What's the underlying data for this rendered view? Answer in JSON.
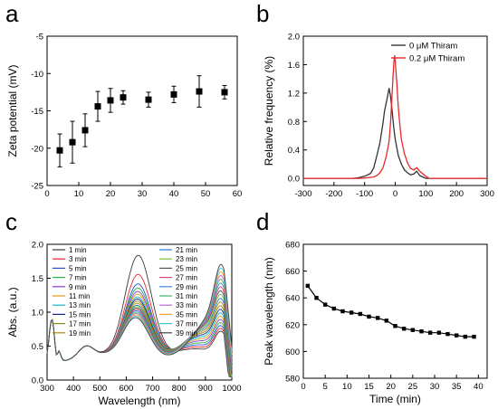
{
  "chart_data": [
    {
      "panel": "a",
      "type": "scatter",
      "ylabel": "Zeta potential (mV)",
      "xlabel": "",
      "xlim": [
        0,
        60
      ],
      "ylim": [
        -25,
        -5
      ],
      "xticks": [
        "0",
        "10",
        "20",
        "30",
        "40",
        "50",
        "60"
      ],
      "yticks": [
        "-25",
        "-20",
        "-15",
        "-10",
        "-5"
      ],
      "x": [
        4,
        8,
        12,
        16,
        20,
        24,
        32,
        40,
        48,
        56
      ],
      "y": [
        -20.3,
        -19.2,
        -17.6,
        -14.4,
        -13.6,
        -13.2,
        -13.5,
        -12.8,
        -12.4,
        -12.5
      ],
      "err": [
        2.2,
        2.8,
        2.2,
        2.0,
        1.6,
        0.9,
        1.0,
        1.1,
        2.1,
        0.9
      ],
      "color": "#000000"
    },
    {
      "panel": "b",
      "type": "line",
      "ylabel": "Relative frequency (%)",
      "xlabel": "",
      "xlim": [
        -300,
        300
      ],
      "ylim": [
        -0.1,
        2.0
      ],
      "xticks": [
        "-300",
        "-200",
        "-100",
        "0",
        "100",
        "200",
        "300"
      ],
      "yticks": [
        "0.0",
        "0.4",
        "0.8",
        "1.2",
        "1.6",
        "2.0"
      ],
      "legend_position": "top-right",
      "series": [
        {
          "name": "0 μM Thiram",
          "color": "#333333",
          "x": [
            -300,
            -140,
            -120,
            -100,
            -80,
            -70,
            -60,
            -50,
            -40,
            -35,
            -30,
            -25,
            -20,
            -15,
            -10,
            -5,
            0,
            10,
            20,
            30,
            40,
            50,
            60,
            70,
            80,
            90,
            100,
            300
          ],
          "y": [
            0,
            0,
            0.01,
            0.03,
            0.07,
            0.15,
            0.32,
            0.5,
            0.78,
            0.95,
            1.05,
            1.15,
            1.27,
            1.15,
            0.95,
            0.72,
            0.55,
            0.32,
            0.2,
            0.12,
            0.08,
            0.05,
            0.06,
            0.1,
            0.04,
            0.02,
            0,
            0
          ]
        },
        {
          "name": "0.2 μM Thiram",
          "color": "#e8282b",
          "x": [
            -300,
            -110,
            -90,
            -70,
            -60,
            -50,
            -40,
            -30,
            -20,
            -15,
            -10,
            -5,
            -2,
            0,
            5,
            10,
            15,
            20,
            30,
            40,
            50,
            60,
            70,
            80,
            100,
            110,
            300
          ],
          "y": [
            0,
            0,
            0.01,
            0.02,
            0.04,
            0.08,
            0.15,
            0.3,
            0.52,
            0.8,
            1.2,
            1.6,
            1.73,
            1.65,
            1.35,
            1.0,
            0.75,
            0.55,
            0.35,
            0.22,
            0.14,
            0.12,
            0.15,
            0.1,
            0.03,
            0,
            0
          ]
        }
      ]
    },
    {
      "panel": "c",
      "type": "line",
      "xlabel": "Wavelength (nm)",
      "ylabel": "Abs. (a.u.)",
      "xlim": [
        300,
        1000
      ],
      "ylim": [
        0,
        2.0
      ],
      "xticks": [
        "300",
        "400",
        "500",
        "600",
        "700",
        "800",
        "900",
        "1000"
      ],
      "yticks": [
        "0.0",
        "0.5",
        "1.0",
        "1.5",
        "2.0"
      ],
      "legend_position": "top-left",
      "series": [
        {
          "name": "1 min",
          "color": "#3b3b3b",
          "peak": 1.9
        },
        {
          "name": "3 min",
          "color": "#e8282b",
          "peak": 1.62
        },
        {
          "name": "5 min",
          "color": "#2a4fd8",
          "peak": 1.48
        },
        {
          "name": "7 min",
          "color": "#2db34a",
          "peak": 1.42
        },
        {
          "name": "9 min",
          "color": "#8b3fc9",
          "peak": 1.37
        },
        {
          "name": "11 min",
          "color": "#e39a1c",
          "peak": 1.33
        },
        {
          "name": "13 min",
          "color": "#18b7c6",
          "peak": 1.29
        },
        {
          "name": "15 min",
          "color": "#1a2a8a",
          "peak": 1.26
        },
        {
          "name": "17 min",
          "color": "#8a8a1a",
          "peak": 1.23
        },
        {
          "name": "19 min",
          "color": "#b8860b",
          "peak": 1.2
        },
        {
          "name": "21 min",
          "color": "#2a7ad8",
          "peak": 1.17
        },
        {
          "name": "23 min",
          "color": "#7fc241",
          "peak": 1.15
        },
        {
          "name": "25 min",
          "color": "#555555",
          "peak": 1.13
        },
        {
          "name": "27 min",
          "color": "#e0447a",
          "peak": 1.11
        },
        {
          "name": "29 min",
          "color": "#3a8edc",
          "peak": 1.09
        },
        {
          "name": "31 min",
          "color": "#3cb371",
          "peak": 1.07
        },
        {
          "name": "33 min",
          "color": "#c266d6",
          "peak": 1.05
        },
        {
          "name": "35 min",
          "color": "#f0a030",
          "peak": 1.03
        },
        {
          "name": "37 min",
          "color": "#40c8d0",
          "peak": 1.01
        },
        {
          "name": "39 min",
          "color": "#444444",
          "peak": 0.99
        }
      ]
    },
    {
      "panel": "d",
      "type": "line",
      "xlabel": "Time (min)",
      "ylabel": "Peak wavelength (nm)",
      "xlim": [
        0,
        42
      ],
      "ylim": [
        580,
        680
      ],
      "xticks": [
        "0",
        "5",
        "10",
        "15",
        "20",
        "25",
        "30",
        "35",
        "40"
      ],
      "yticks": [
        "580",
        "600",
        "620",
        "640",
        "660",
        "680"
      ],
      "x": [
        1,
        3,
        5,
        7,
        9,
        11,
        13,
        15,
        17,
        19,
        21,
        23,
        25,
        27,
        29,
        31,
        33,
        35,
        37,
        39
      ],
      "y": [
        649,
        640,
        635,
        632,
        630,
        629,
        628,
        626,
        625,
        623,
        619,
        617,
        616,
        615,
        614,
        614,
        613,
        612,
        611,
        611
      ],
      "color": "#000000"
    }
  ]
}
